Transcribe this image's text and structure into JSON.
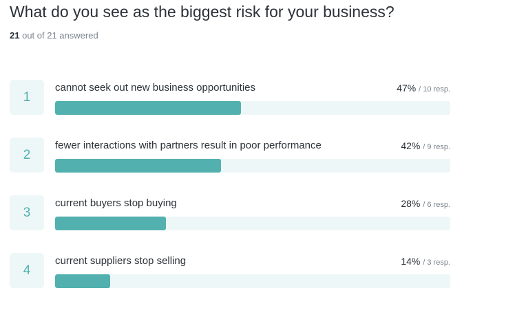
{
  "question": {
    "title": "What do you see as the biggest risk for your business?",
    "answered_count": "21",
    "answered_suffix": "out of 21 answered"
  },
  "colors": {
    "bar_fill": "#52b1ae",
    "bar_track": "#eef7f8",
    "rank_text": "#4fb2ad"
  },
  "chart_data": {
    "type": "bar",
    "orientation": "horizontal",
    "xlim": [
      0,
      100
    ],
    "categories": [
      "cannot seek out new business opportunities",
      "fewer interactions with partners result in poor performance",
      "current buyers stop buying",
      "current suppliers stop selling"
    ],
    "values": [
      47,
      42,
      28,
      14
    ],
    "responses": [
      10,
      9,
      6,
      3
    ],
    "items": [
      {
        "rank": "1",
        "label": "cannot seek out new business opportunities",
        "percent_text": "47%",
        "resp_text": "/ 10 resp.",
        "value": 47
      },
      {
        "rank": "2",
        "label": "fewer interactions with partners result in poor performance",
        "percent_text": "42%",
        "resp_text": "/ 9 resp.",
        "value": 42
      },
      {
        "rank": "3",
        "label": "current buyers stop buying",
        "percent_text": "28%",
        "resp_text": "/ 6 resp.",
        "value": 28
      },
      {
        "rank": "4",
        "label": "current suppliers stop selling",
        "percent_text": "14%",
        "resp_text": "/ 3 resp.",
        "value": 14
      }
    ]
  }
}
